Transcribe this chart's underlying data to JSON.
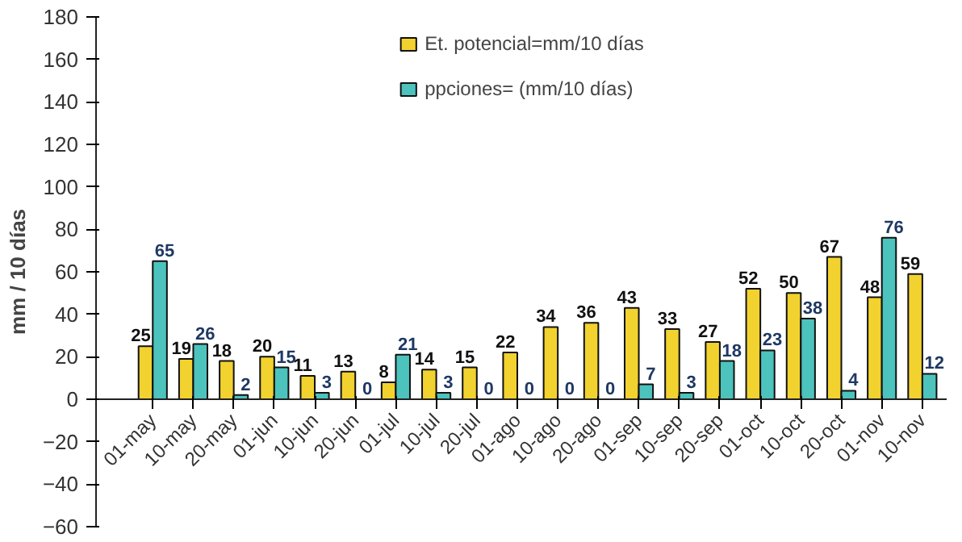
{
  "chart_data": {
    "type": "bar",
    "ylabel": "mm / 10 días",
    "categories": [
      "01-may",
      "10-may",
      "20-may",
      "01-jun",
      "10-jun",
      "20-jun",
      "01-jul",
      "10-jul",
      "20-jul",
      "01-ago",
      "10-ago",
      "20-ago",
      "01-sep",
      "10-sep",
      "20-sep",
      "01-oct",
      "10-oct",
      "20-oct",
      "01-nov",
      "10-nov"
    ],
    "series": [
      {
        "name": "Et. potencial=mm/10 días",
        "color": "#f2d22e",
        "values": [
          25,
          19,
          18,
          20,
          11,
          13,
          8,
          14,
          15,
          22,
          34,
          36,
          43,
          33,
          27,
          52,
          50,
          67,
          48,
          59
        ]
      },
      {
        "name": "ppciones= (mm/10 días)",
        "color": "#4cc3bd",
        "values": [
          65,
          26,
          2,
          15,
          3,
          0,
          21,
          3,
          0,
          0,
          0,
          0,
          7,
          3,
          18,
          23,
          38,
          4,
          76,
          12
        ]
      }
    ],
    "ylim": [
      -60,
      180
    ],
    "yticks": [
      -60,
      -40,
      -20,
      0,
      20,
      40,
      60,
      80,
      100,
      120,
      140,
      160,
      180
    ],
    "data_labels": true,
    "grid": false,
    "legend": "top"
  }
}
